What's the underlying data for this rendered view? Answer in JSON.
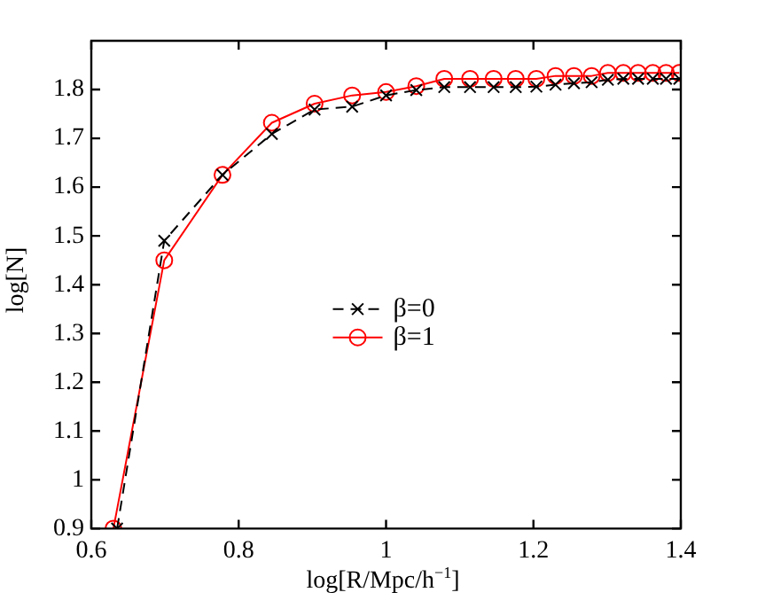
{
  "chart_data": {
    "type": "line",
    "xlabel": "log[R/Mpc/h$^{−1}$]",
    "ylabel": "log[N]",
    "xlim": [
      0.6,
      1.4
    ],
    "xticks": [
      0.6,
      0.8,
      1,
      1.2,
      1.4
    ],
    "ylim": [
      0.9,
      1.9
    ],
    "yticks": [
      0.9,
      1,
      1.1,
      1.2,
      1.3,
      1.4,
      1.5,
      1.6,
      1.7,
      1.8
    ],
    "grid": false,
    "legend": "center",
    "series": [
      {
        "name": "β=0",
        "color": "#000000",
        "marker": "cross",
        "line_style": "dashed",
        "x": [
          0.635,
          0.699,
          0.778,
          0.845,
          0.903,
          0.954,
          1.0,
          1.041,
          1.079,
          1.114,
          1.146,
          1.176,
          1.204,
          1.23,
          1.255,
          1.279,
          1.301,
          1.322,
          1.342,
          1.362,
          1.38,
          1.398
        ],
        "values": [
          0.9,
          1.49,
          1.625,
          1.709,
          1.759,
          1.765,
          1.788,
          1.799,
          1.805,
          1.805,
          1.805,
          1.805,
          1.806,
          1.81,
          1.813,
          1.815,
          1.82,
          1.822,
          1.822,
          1.822,
          1.822,
          1.822
        ]
      },
      {
        "name": "β=1",
        "color": "#ff0000",
        "marker": "circle",
        "line_style": "solid",
        "x": [
          0.63,
          0.699,
          0.778,
          0.845,
          0.903,
          0.954,
          1.0,
          1.041,
          1.079,
          1.114,
          1.146,
          1.176,
          1.204,
          1.23,
          1.255,
          1.279,
          1.301,
          1.322,
          1.342,
          1.362,
          1.38,
          1.398
        ],
        "values": [
          0.9,
          1.45,
          1.625,
          1.732,
          1.771,
          1.788,
          1.795,
          1.807,
          1.822,
          1.822,
          1.822,
          1.822,
          1.822,
          1.828,
          1.828,
          1.828,
          1.834,
          1.834,
          1.834,
          1.834,
          1.834,
          1.834
        ]
      }
    ]
  }
}
